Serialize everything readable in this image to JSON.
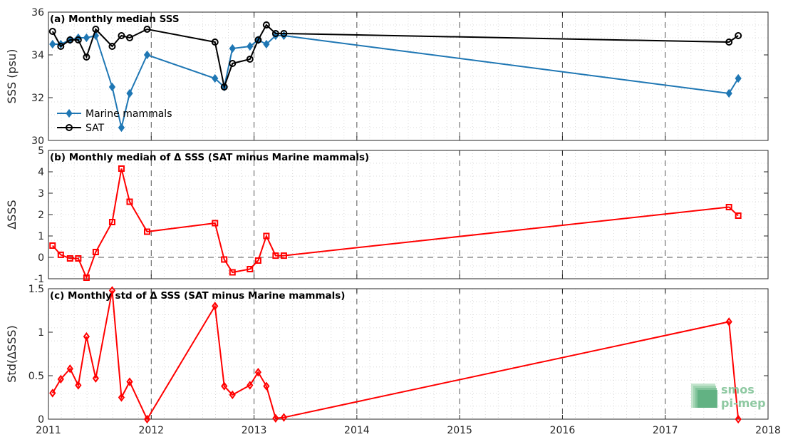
{
  "chart_data": [
    {
      "type": "line",
      "title": "(a) Monthly median SSS",
      "xlabel": "",
      "ylabel": "SSS (psu)",
      "xlim": [
        2011,
        2018
      ],
      "ylim": [
        30,
        36
      ],
      "yticks": [
        30,
        32,
        34,
        36
      ],
      "xticks": [
        2011,
        2012,
        2013,
        2014,
        2015,
        2016,
        2017,
        2018
      ],
      "grid": "dotted minor, dashed major vertical at years",
      "legend_position": "bottom-left",
      "series": [
        {
          "name": "Marine mammals",
          "color": "#1f77b4",
          "marker": "diamond",
          "x": [
            2011.04,
            2011.12,
            2011.21,
            2011.29,
            2011.37,
            2011.46,
            2011.62,
            2011.71,
            2011.79,
            2011.96,
            2012.62,
            2012.71,
            2012.79,
            2012.96,
            2013.04,
            2013.12,
            2013.21,
            2013.29,
            2017.62,
            2017.71
          ],
          "y": [
            34.5,
            34.5,
            34.7,
            34.8,
            34.8,
            34.9,
            32.5,
            30.6,
            32.2,
            34.0,
            32.9,
            32.5,
            34.3,
            34.4,
            34.7,
            34.5,
            34.9,
            34.9,
            32.2,
            32.9
          ]
        },
        {
          "name": "SAT",
          "color": "#000000",
          "marker": "circle",
          "x": [
            2011.04,
            2011.12,
            2011.21,
            2011.29,
            2011.37,
            2011.46,
            2011.62,
            2011.71,
            2011.79,
            2011.96,
            2012.62,
            2012.71,
            2012.79,
            2012.96,
            2013.04,
            2013.12,
            2013.21,
            2013.29,
            2017.62,
            2017.71
          ],
          "y": [
            35.1,
            34.4,
            34.7,
            34.7,
            33.9,
            35.2,
            34.4,
            34.9,
            34.8,
            35.2,
            34.6,
            32.5,
            33.6,
            33.8,
            34.7,
            35.4,
            35.0,
            35.0,
            34.6,
            34.9
          ]
        }
      ]
    },
    {
      "type": "line",
      "title": "(b) Monthly median of Δ SSS (SAT minus Marine mammals)",
      "xlabel": "",
      "ylabel": "ΔSSS",
      "xlim": [
        2011,
        2018
      ],
      "ylim": [
        -1,
        5
      ],
      "yticks": [
        -1,
        0,
        1,
        2,
        3,
        4,
        5
      ],
      "xticks": [
        2011,
        2012,
        2013,
        2014,
        2015,
        2016,
        2017,
        2018
      ],
      "reference_line": 0,
      "series": [
        {
          "color": "#ff0000",
          "marker": "square",
          "x": [
            2011.04,
            2011.12,
            2011.21,
            2011.29,
            2011.37,
            2011.46,
            2011.62,
            2011.71,
            2011.79,
            2011.96,
            2012.62,
            2012.71,
            2012.79,
            2012.96,
            2013.04,
            2013.12,
            2013.21,
            2013.29,
            2017.62,
            2017.71
          ],
          "y": [
            0.55,
            0.12,
            -0.05,
            -0.05,
            -0.95,
            0.25,
            1.65,
            4.15,
            2.6,
            1.2,
            1.6,
            -0.1,
            -0.7,
            -0.55,
            -0.15,
            1.0,
            0.08,
            0.08,
            2.35,
            1.95
          ]
        }
      ]
    },
    {
      "type": "line",
      "title": "(c) Monthly std of Δ SSS (SAT minus Marine mammals)",
      "xlabel": "",
      "ylabel": "Std(ΔSSS)",
      "xlim": [
        2011,
        2018
      ],
      "ylim": [
        0,
        1.5
      ],
      "yticks": [
        0,
        0.5,
        1,
        1.5
      ],
      "ytick_labels": [
        "0",
        "0.5",
        "1",
        "1.5"
      ],
      "xticks": [
        2011,
        2012,
        2013,
        2014,
        2015,
        2016,
        2017,
        2018
      ],
      "xtick_labels": [
        "2011",
        "2012",
        "2013",
        "2014",
        "2015",
        "2016",
        "2017",
        "2018"
      ],
      "series": [
        {
          "color": "#ff0000",
          "marker": "diamond",
          "x": [
            2011.04,
            2011.12,
            2011.21,
            2011.29,
            2011.37,
            2011.46,
            2011.62,
            2011.71,
            2011.79,
            2011.96,
            2012.62,
            2012.71,
            2012.79,
            2012.96,
            2013.04,
            2013.12,
            2013.21,
            2013.29,
            2017.62,
            2017.71
          ],
          "y": [
            0.3,
            0.46,
            0.58,
            0.39,
            0.95,
            0.47,
            1.48,
            0.25,
            0.43,
            0.0,
            1.3,
            0.38,
            0.28,
            0.39,
            0.54,
            0.38,
            0.01,
            0.02,
            1.12,
            0.0
          ]
        }
      ]
    }
  ],
  "logo": {
    "line1": "smos",
    "line2": "pi-mep"
  }
}
